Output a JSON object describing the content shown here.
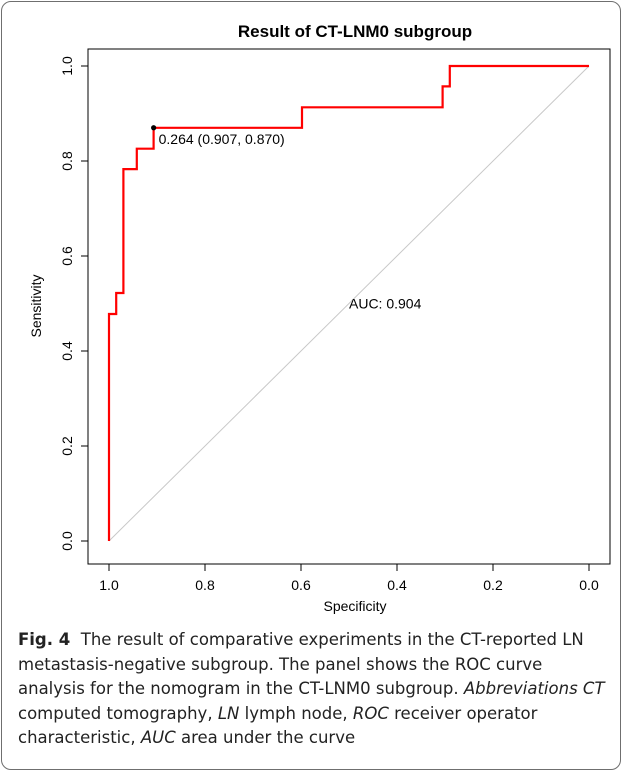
{
  "chart_data": {
    "type": "line",
    "title": "Result of CT-LNM0 subgroup",
    "xlabel": "Specificity",
    "ylabel": "Sensitivity",
    "xlim": [
      1.0,
      0.0
    ],
    "ylim": [
      0.0,
      1.0
    ],
    "x_reversed": true,
    "xticks": [
      "1.0",
      "0.8",
      "0.6",
      "0.4",
      "0.2",
      "0.0"
    ],
    "yticks": [
      "0.0",
      "0.2",
      "0.4",
      "0.6",
      "0.8",
      "1.0"
    ],
    "series": [
      {
        "color": "#ff0000",
        "specificity": [
          1.0,
          1.0,
          0.985,
          0.985,
          0.97,
          0.97,
          0.942,
          0.942,
          0.907,
          0.907,
          0.598,
          0.598,
          0.305,
          0.305,
          0.29,
          0.29,
          0.0
        ],
        "sensitivity": [
          0.0,
          0.478,
          0.478,
          0.522,
          0.522,
          0.783,
          0.783,
          0.826,
          0.826,
          0.87,
          0.87,
          0.913,
          0.913,
          0.957,
          0.957,
          1.0,
          1.0
        ]
      }
    ],
    "reference_line": {
      "color": "#c8c8c8",
      "from": [
        1.0,
        0.0
      ],
      "to": [
        0.0,
        1.0
      ]
    },
    "best_threshold": {
      "specificity": 0.907,
      "sensitivity": 0.87,
      "label": "0.264 (0.907, 0.870)"
    },
    "auc_label": {
      "text": "AUC: 0.904",
      "color": "#ff0000"
    }
  },
  "caption": {
    "fig_label": "Fig. 4",
    "text": "The result of comparative experiments in the CT-reported LN metastasis-negative subgroup. The panel shows the ROC curve analysis for the nomogram in the CT-LNM0 subgroup.",
    "abbr_head": "Abbreviations",
    "abbr": [
      {
        "term": "CT",
        "def": "computed tomography"
      },
      {
        "term": "LN",
        "def": "lymph node"
      },
      {
        "term": "ROC",
        "def": "receiver operator characteristic"
      },
      {
        "term": "AUC",
        "def": "area under the curve"
      }
    ]
  }
}
